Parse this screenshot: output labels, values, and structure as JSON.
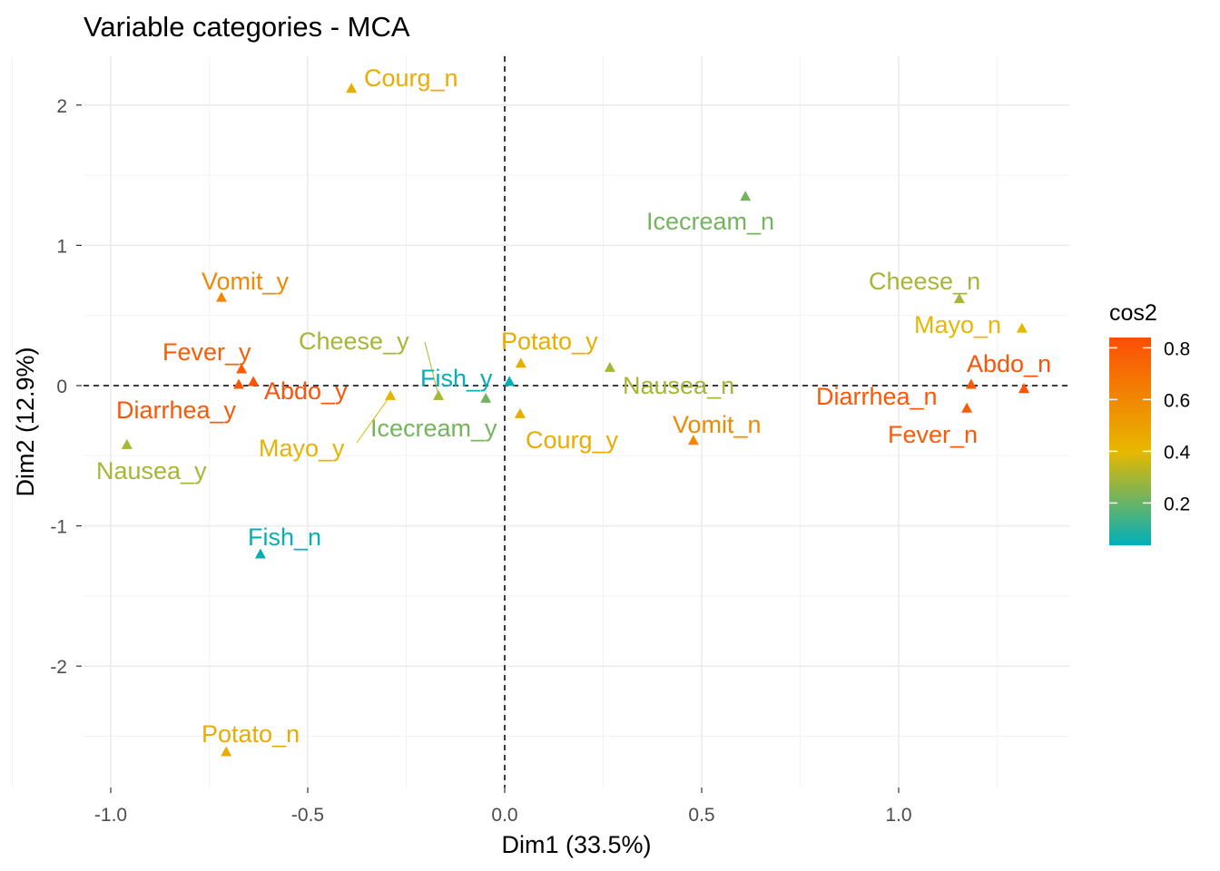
{
  "chart_data": {
    "type": "scatter",
    "title": "Variable categories - MCA",
    "xlabel": "Dim1 (33.5%)",
    "ylabel": "Dim2 (12.9%)",
    "xlim": [
      -1.07,
      1.43
    ],
    "ylim": [
      -2.87,
      2.35
    ],
    "xticks": [
      -1.0,
      -0.5,
      0.0,
      0.5,
      1.0
    ],
    "xtick_labels": [
      "-1.0",
      "-0.5",
      "0.0",
      "0.5",
      "1.0"
    ],
    "yticks": [
      -2,
      -1,
      0,
      1,
      2
    ],
    "ytick_labels": [
      "-2",
      "-1",
      "0",
      "1",
      "2"
    ],
    "grid": true,
    "reference_lines": {
      "x": 0,
      "y": 0,
      "style": "dashed"
    },
    "legend": {
      "title": "cos2",
      "placement": "right",
      "ticks": [
        0.2,
        0.4,
        0.6,
        0.8
      ],
      "tick_labels": [
        "0.2",
        "0.4",
        "0.6",
        "0.8"
      ],
      "range": [
        0.04,
        0.84
      ]
    },
    "gradient_colors": {
      "low": "#00AFBB",
      "mid": "#E7B800",
      "high": "#FC4E07"
    },
    "points": [
      {
        "label": "Courg_n",
        "x": -0.389,
        "y": 2.12,
        "cos2": 0.45
      },
      {
        "label": "Icecream_n",
        "x": 0.611,
        "y": 1.35,
        "cos2": 0.22
      },
      {
        "label": "Cheese_n",
        "x": 1.154,
        "y": 0.62,
        "cos2": 0.3
      },
      {
        "label": "Mayo_n",
        "x": 1.313,
        "y": 0.41,
        "cos2": 0.4
      },
      {
        "label": "Abdo_n",
        "x": 1.318,
        "y": -0.02,
        "cos2": 0.82
      },
      {
        "label": "Diarrhea_n",
        "x": 1.184,
        "y": 0.01,
        "cos2": 0.8
      },
      {
        "label": "Fever_n",
        "x": 1.173,
        "y": -0.16,
        "cos2": 0.78
      },
      {
        "label": "Vomit_n",
        "x": 0.479,
        "y": -0.39,
        "cos2": 0.6
      },
      {
        "label": "Nausea_n",
        "x": 0.267,
        "y": 0.13,
        "cos2": 0.3
      },
      {
        "label": "Potato_y",
        "x": 0.041,
        "y": 0.16,
        "cos2": 0.45
      },
      {
        "label": "Courg_y",
        "x": 0.039,
        "y": -0.2,
        "cos2": 0.45
      },
      {
        "label": "Fish_y",
        "x": 0.012,
        "y": 0.03,
        "cos2": 0.05
      },
      {
        "label": "Icecream_y",
        "x": -0.048,
        "y": -0.09,
        "cos2": 0.22
      },
      {
        "label": "Cheese_y",
        "x": -0.168,
        "y": -0.07,
        "cos2": 0.3
      },
      {
        "label": "Mayo_y",
        "x": -0.29,
        "y": -0.07,
        "cos2": 0.42
      },
      {
        "label": "Abdo_y",
        "x": -0.638,
        "y": 0.03,
        "cos2": 0.82
      },
      {
        "label": "Fever_y",
        "x": -0.668,
        "y": 0.12,
        "cos2": 0.78
      },
      {
        "label": "Diarrhea_y",
        "x": -0.675,
        "y": 0.01,
        "cos2": 0.8
      },
      {
        "label": "Vomit_y",
        "x": -0.719,
        "y": 0.63,
        "cos2": 0.6
      },
      {
        "label": "Nausea_y",
        "x": -0.959,
        "y": -0.42,
        "cos2": 0.3
      },
      {
        "label": "Fish_n",
        "x": -0.62,
        "y": -1.2,
        "cos2": 0.05
      },
      {
        "label": "Potato_n",
        "x": -0.707,
        "y": -2.61,
        "cos2": 0.45
      }
    ]
  }
}
